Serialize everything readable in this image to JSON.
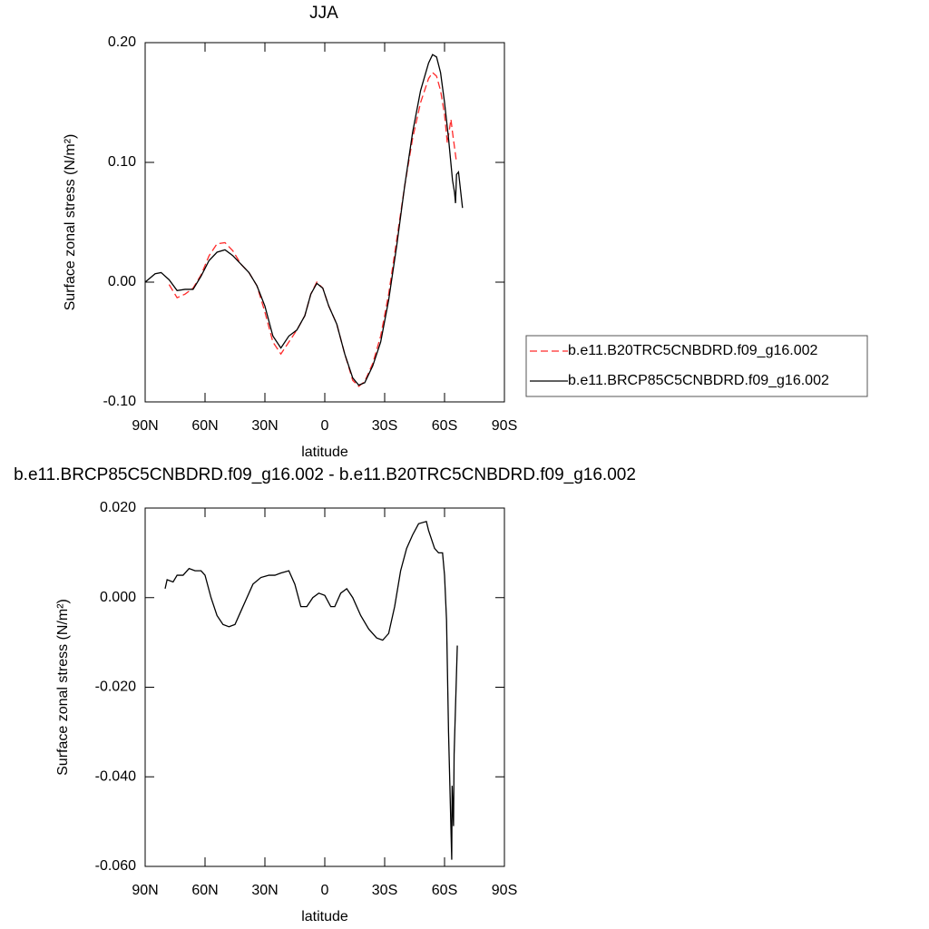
{
  "chart_data": [
    {
      "type": "line",
      "title": "JJA",
      "x_label": "latitude",
      "y_label": "Surface zonal stress (N/m²)",
      "xlim": [
        90,
        -90
      ],
      "xticks": [
        {
          "value": 90,
          "label": "90N"
        },
        {
          "value": 60,
          "label": "60N"
        },
        {
          "value": 30,
          "label": "30N"
        },
        0,
        {
          "value": -30,
          "label": "30S"
        },
        {
          "value": -60,
          "label": "60S"
        },
        {
          "value": -90,
          "label": "90S"
        }
      ],
      "ylim": [
        -0.1,
        0.2
      ],
      "yticks": [
        {
          "value": -0.1,
          "label": "-0.10"
        },
        {
          "value": 0,
          "label": "0.00"
        },
        {
          "value": 0.1,
          "label": "0.10"
        },
        {
          "value": 0.2,
          "label": "0.20"
        }
      ],
      "legend": "right",
      "series": [
        {
          "name": "b.e11.B20TRC5CNBDRD.f09_g16.002",
          "color": "#ff2a2a",
          "dashed": true,
          "x": [
            78,
            74,
            70,
            66,
            62,
            58,
            54,
            50,
            46,
            42,
            38,
            34,
            30,
            26,
            22,
            18,
            14,
            10,
            7,
            4,
            1,
            -2,
            -6,
            -10,
            -14,
            -17,
            -20,
            -24,
            -28,
            -32,
            -36,
            -40,
            -44,
            -48,
            -52,
            -54,
            -56,
            -58,
            -60,
            -61.4,
            -63.2,
            -64,
            -66
          ],
          "values": [
            -0.002,
            -0.013,
            -0.01,
            -0.005,
            0.006,
            0.022,
            0.032,
            0.033,
            0.026,
            0.015,
            0.008,
            -0.003,
            -0.025,
            -0.05,
            -0.06,
            -0.05,
            -0.04,
            -0.028,
            -0.01,
            0.0,
            -0.005,
            -0.02,
            -0.035,
            -0.06,
            -0.082,
            -0.087,
            -0.083,
            -0.068,
            -0.045,
            -0.01,
            0.035,
            0.08,
            0.12,
            0.15,
            0.17,
            0.175,
            0.172,
            0.16,
            0.14,
            0.116,
            0.136,
            0.125,
            0.1
          ]
        },
        {
          "name": "b.e11.BRCP85C5CNBDRD.f09_g16.002",
          "color": "#000000",
          "dashed": false,
          "x": [
            90,
            85,
            82,
            78,
            74,
            70,
            66,
            62,
            58,
            54,
            50,
            46,
            42,
            38,
            34,
            30,
            26,
            22,
            18,
            14,
            10,
            7,
            4,
            1,
            -2,
            -6,
            -10,
            -14,
            -17,
            -20,
            -24,
            -28,
            -32,
            -36,
            -40,
            -44,
            -48,
            -52,
            -54,
            -56,
            -58,
            -60,
            -62,
            -64,
            -65,
            -65.5,
            -66,
            -67,
            -69
          ],
          "values": [
            0.0,
            0.007,
            0.008,
            0.002,
            -0.007,
            -0.006,
            -0.006,
            0.005,
            0.018,
            0.025,
            0.027,
            0.022,
            0.015,
            0.008,
            -0.003,
            -0.02,
            -0.045,
            -0.055,
            -0.045,
            -0.04,
            -0.028,
            -0.01,
            -0.001,
            -0.005,
            -0.02,
            -0.035,
            -0.06,
            -0.08,
            -0.086,
            -0.084,
            -0.07,
            -0.05,
            -0.015,
            0.03,
            0.08,
            0.125,
            0.16,
            0.183,
            0.19,
            0.188,
            0.175,
            0.15,
            0.12,
            0.085,
            0.075,
            0.066,
            0.09,
            0.092,
            0.062
          ]
        }
      ]
    },
    {
      "type": "line",
      "title": "b.e11.BRCP85C5CNBDRD.f09_g16.002 - b.e11.B20TRC5CNBDRD.f09_g16.002",
      "x_label": "latitude",
      "y_label": "Surface zonal stress (N/m²)",
      "xlim": [
        90,
        -90
      ],
      "xticks": [
        {
          "value": 90,
          "label": "90N"
        },
        {
          "value": 60,
          "label": "60N"
        },
        {
          "value": 30,
          "label": "30N"
        },
        0,
        {
          "value": -30,
          "label": "30S"
        },
        {
          "value": -60,
          "label": "60S"
        },
        {
          "value": -90,
          "label": "90S"
        }
      ],
      "ylim": [
        -0.06,
        0.02
      ],
      "yticks": [
        {
          "value": -0.06,
          "label": "-0.060"
        },
        {
          "value": -0.04,
          "label": "-0.040"
        },
        {
          "value": -0.02,
          "label": "-0.020"
        },
        {
          "value": 0,
          "label": "0.000"
        },
        {
          "value": 0.02,
          "label": "0.020"
        }
      ],
      "series": [
        {
          "color": "#000000",
          "dashed": false,
          "x": [
            80,
            79,
            76,
            74,
            71,
            68,
            65,
            62,
            60,
            57,
            54,
            51,
            48,
            45,
            42,
            39,
            36,
            32,
            28,
            25,
            22,
            18,
            15,
            12,
            9,
            6,
            3,
            0,
            -3,
            -5,
            -8,
            -11,
            -14,
            -18,
            -22,
            -26,
            -29,
            -32,
            -35,
            -38,
            -41,
            -44,
            -47,
            -50.9,
            -52,
            -55,
            -57,
            -59,
            -60,
            -61,
            -62,
            -63.6,
            -63.8,
            -64.5,
            -64.8,
            -66.4
          ],
          "values": [
            0.002,
            0.004,
            0.0035,
            0.005,
            0.005,
            0.0065,
            0.006,
            0.006,
            0.005,
            0.0,
            -0.004,
            -0.006,
            -0.0065,
            -0.006,
            -0.003,
            0.0,
            0.003,
            0.0045,
            0.005,
            0.005,
            0.0055,
            0.006,
            0.003,
            -0.002,
            -0.002,
            0.0,
            0.001,
            0.0005,
            -0.002,
            -0.002,
            0.001,
            0.002,
            0.0,
            -0.004,
            -0.007,
            -0.009,
            -0.0095,
            -0.008,
            -0.002,
            0.006,
            0.011,
            0.014,
            0.0165,
            0.017,
            0.015,
            0.011,
            0.01,
            0.01,
            0.005,
            -0.005,
            -0.03,
            -0.0585,
            -0.042,
            -0.051,
            -0.035,
            -0.0107
          ]
        }
      ]
    }
  ]
}
